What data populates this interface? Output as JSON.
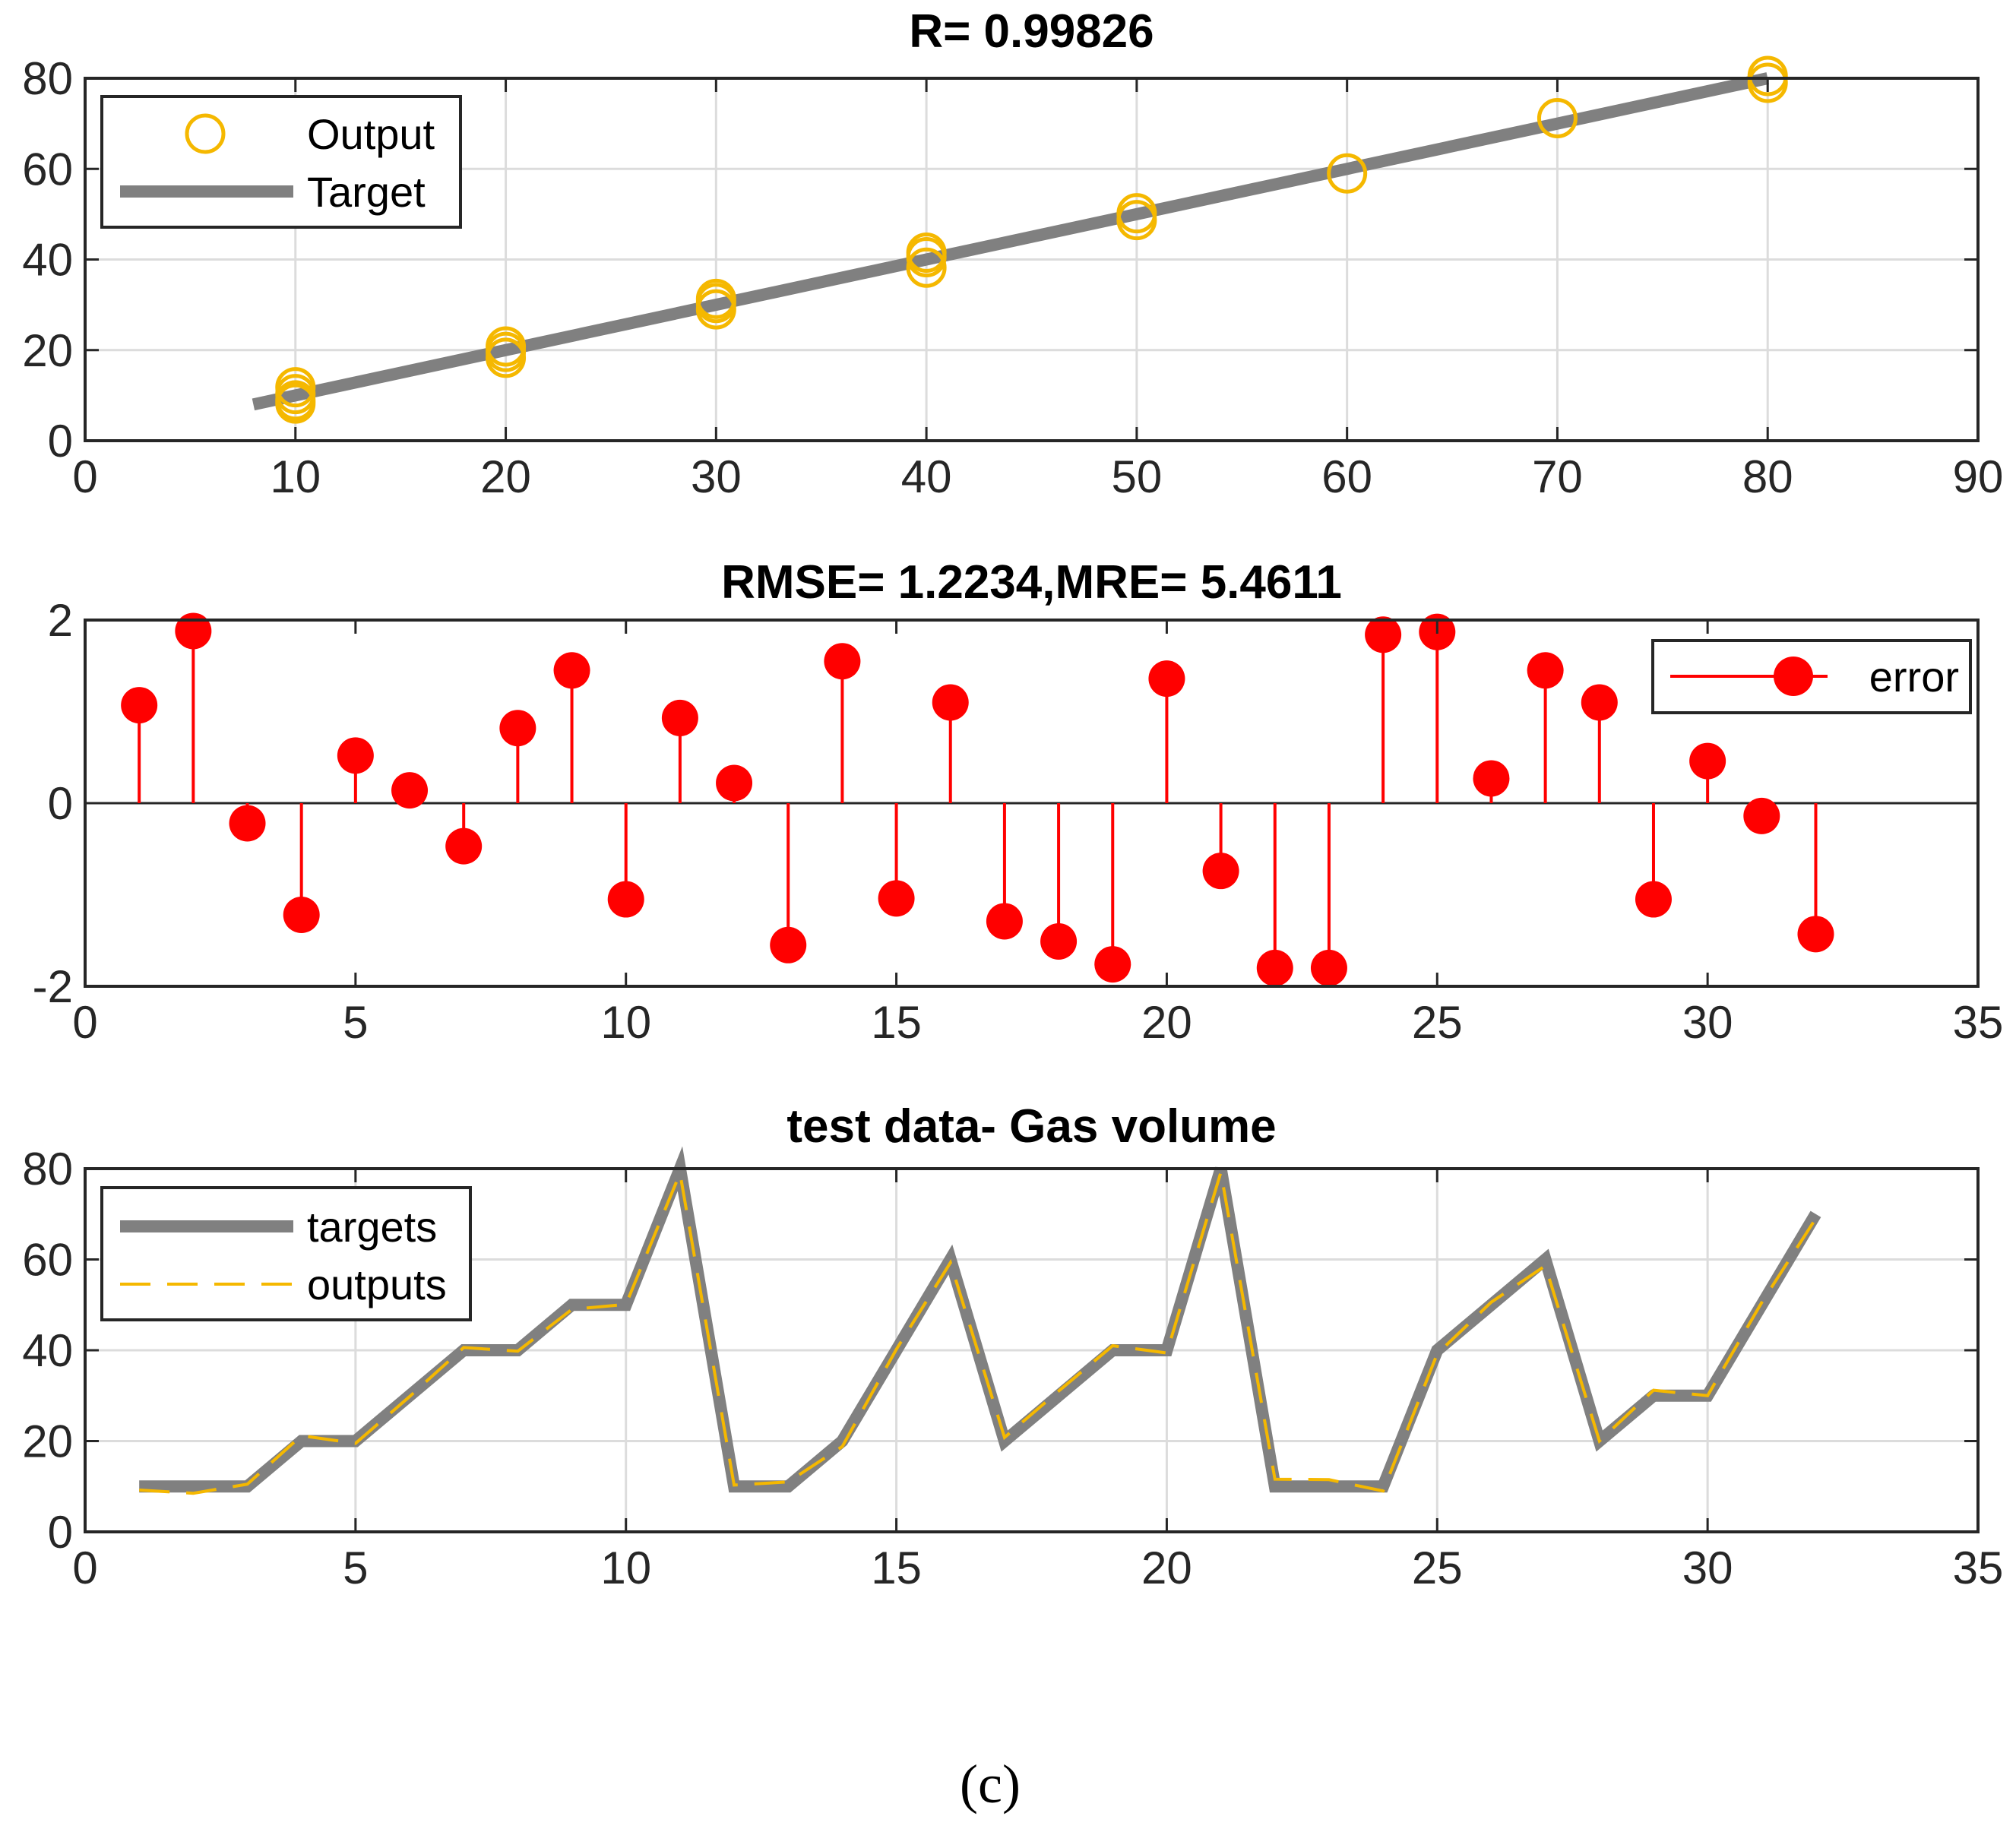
{
  "chart_data": [
    {
      "type": "scatter",
      "title": "R= 0.99826",
      "xlabel": "",
      "ylabel": "",
      "xlim": [
        0,
        90
      ],
      "ylim": [
        0,
        80
      ],
      "xticks": [
        0,
        10,
        20,
        30,
        40,
        50,
        60,
        70,
        80,
        90
      ],
      "yticks": [
        0,
        20,
        40,
        60,
        80
      ],
      "grid": true,
      "legend_position": "top-left",
      "legend": [
        "Output",
        "Target"
      ],
      "series": [
        {
          "name": "Output",
          "style": "open-circle",
          "color": "#f5b800",
          "x": [
            10,
            10,
            10,
            10,
            20,
            20,
            20,
            30,
            30,
            30,
            40,
            40,
            40,
            50,
            50,
            60,
            70,
            80,
            80
          ],
          "y": [
            11.8,
            8.9,
            10.3,
            8.2,
            20.8,
            18.3,
            19.6,
            31.3,
            29.0,
            30.4,
            41.5,
            38.2,
            40.5,
            50.2,
            48.7,
            59.0,
            71.2,
            80.5,
            79.0
          ]
        },
        {
          "name": "Target",
          "style": "line",
          "color": "#808080",
          "x": [
            8,
            80
          ],
          "y": [
            8,
            80
          ]
        }
      ]
    },
    {
      "type": "stem",
      "title": "RMSE= 1.2234,MRE= 5.4611",
      "xlabel": "",
      "ylabel": "",
      "xlim": [
        0,
        35
      ],
      "ylim": [
        -2,
        2
      ],
      "xticks": [
        0,
        5,
        10,
        15,
        20,
        25,
        30,
        35
      ],
      "yticks": [
        -2,
        0,
        2
      ],
      "grid": false,
      "legend_position": "top-right",
      "legend": [
        "error"
      ],
      "series": [
        {
          "name": "error",
          "color": "#ff0000",
          "x": [
            1,
            2,
            3,
            4,
            5,
            6,
            7,
            8,
            9,
            10,
            11,
            12,
            13,
            14,
            15,
            16,
            17,
            18,
            19,
            20,
            21,
            22,
            23,
            24,
            25,
            26,
            27,
            28,
            29,
            30,
            31,
            32
          ],
          "values": [
            1.07,
            1.88,
            -0.22,
            -1.22,
            0.52,
            0.14,
            -0.47,
            0.82,
            1.45,
            -1.05,
            0.93,
            0.22,
            -1.55,
            1.55,
            -1.04,
            1.1,
            -1.29,
            -1.51,
            -1.76,
            1.36,
            -0.74,
            -1.8,
            -1.8,
            1.84,
            1.87,
            0.27,
            1.45,
            1.1,
            -1.05,
            0.46,
            -0.14,
            -1.43
          ]
        }
      ]
    },
    {
      "type": "line",
      "title": "test data- Gas volume",
      "xlabel": "",
      "ylabel": "",
      "xlim": [
        0,
        35
      ],
      "ylim": [
        0,
        80
      ],
      "xticks": [
        0,
        5,
        10,
        15,
        20,
        25,
        30,
        35
      ],
      "yticks": [
        0,
        20,
        40,
        60,
        80
      ],
      "grid": true,
      "legend_position": "top-left",
      "legend": [
        "targets",
        "outputs"
      ],
      "x": [
        1,
        2,
        3,
        4,
        5,
        6,
        7,
        8,
        9,
        10,
        11,
        12,
        13,
        14,
        15,
        16,
        17,
        18,
        19,
        20,
        21,
        22,
        23,
        24,
        25,
        26,
        27,
        28,
        29,
        30,
        31,
        32
      ],
      "series": [
        {
          "name": "targets",
          "style": "solid",
          "color": "#808080",
          "values": [
            10,
            10,
            10,
            20,
            20,
            30,
            40,
            40,
            50,
            50,
            80,
            10,
            10,
            20,
            40,
            60,
            20,
            30,
            40,
            40,
            80,
            10,
            10,
            10,
            40,
            50,
            60,
            20,
            30,
            30,
            50,
            70
          ]
        },
        {
          "name": "outputs",
          "style": "dashed",
          "color": "#f5b800",
          "values": [
            9.2,
            8.5,
            10.5,
            21.2,
            19.5,
            29.8,
            40.6,
            39.8,
            49.0,
            50.1,
            79.0,
            10.3,
            11.0,
            18.8,
            40.2,
            59.3,
            20.8,
            31.0,
            41.0,
            39.4,
            79.2,
            11.6,
            11.5,
            9.0,
            39.2,
            50.6,
            58.6,
            20.0,
            31.2,
            30.0,
            50.5,
            69.0
          ]
        }
      ]
    }
  ],
  "caption": "(c)"
}
